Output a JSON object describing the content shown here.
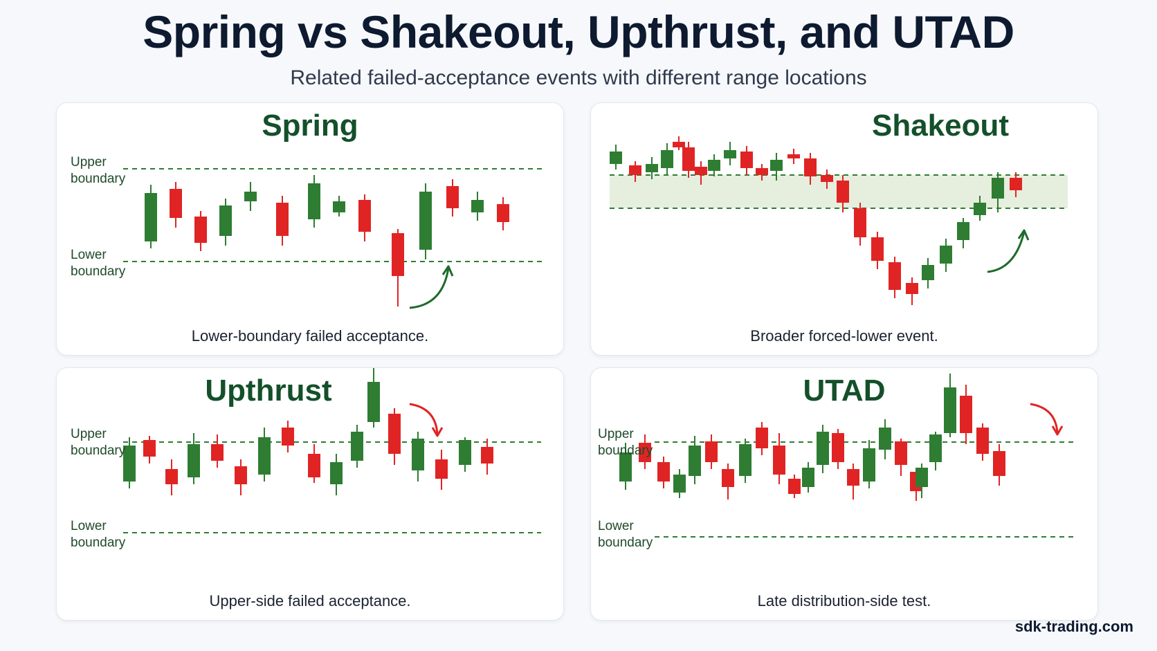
{
  "header": {
    "title": "Spring vs Shakeout, Upthrust, and UTAD",
    "subtitle": "Related failed-acceptance events with different range locations"
  },
  "colors": {
    "bull": "#2e7d32",
    "bear": "#e02424",
    "boundary": "#2e7d32",
    "zone_fill": "#e6eedd",
    "arrow_up": "#1e6b2a",
    "arrow_down": "#e02424"
  },
  "panels": {
    "spring": {
      "title": "Spring",
      "caption": "Lower-boundary failed acceptance.",
      "upper_label": "Upper\nboundary",
      "lower_label": "Lower\nboundary"
    },
    "shakeout": {
      "title": "Shakeout",
      "caption": "Broader forced-lower event."
    },
    "upthrust": {
      "title": "Upthrust",
      "caption": "Upper-side failed acceptance.",
      "upper_label": "Upper\nboundary",
      "lower_label": "Lower\nboundary"
    },
    "utad": {
      "title": "UTAD",
      "caption": "Late distribution-side test.",
      "upper_label": "Upper\nboundary",
      "lower_label": "Lower\nboundary"
    }
  },
  "footer": {
    "site": "sdk-trading.com"
  }
}
